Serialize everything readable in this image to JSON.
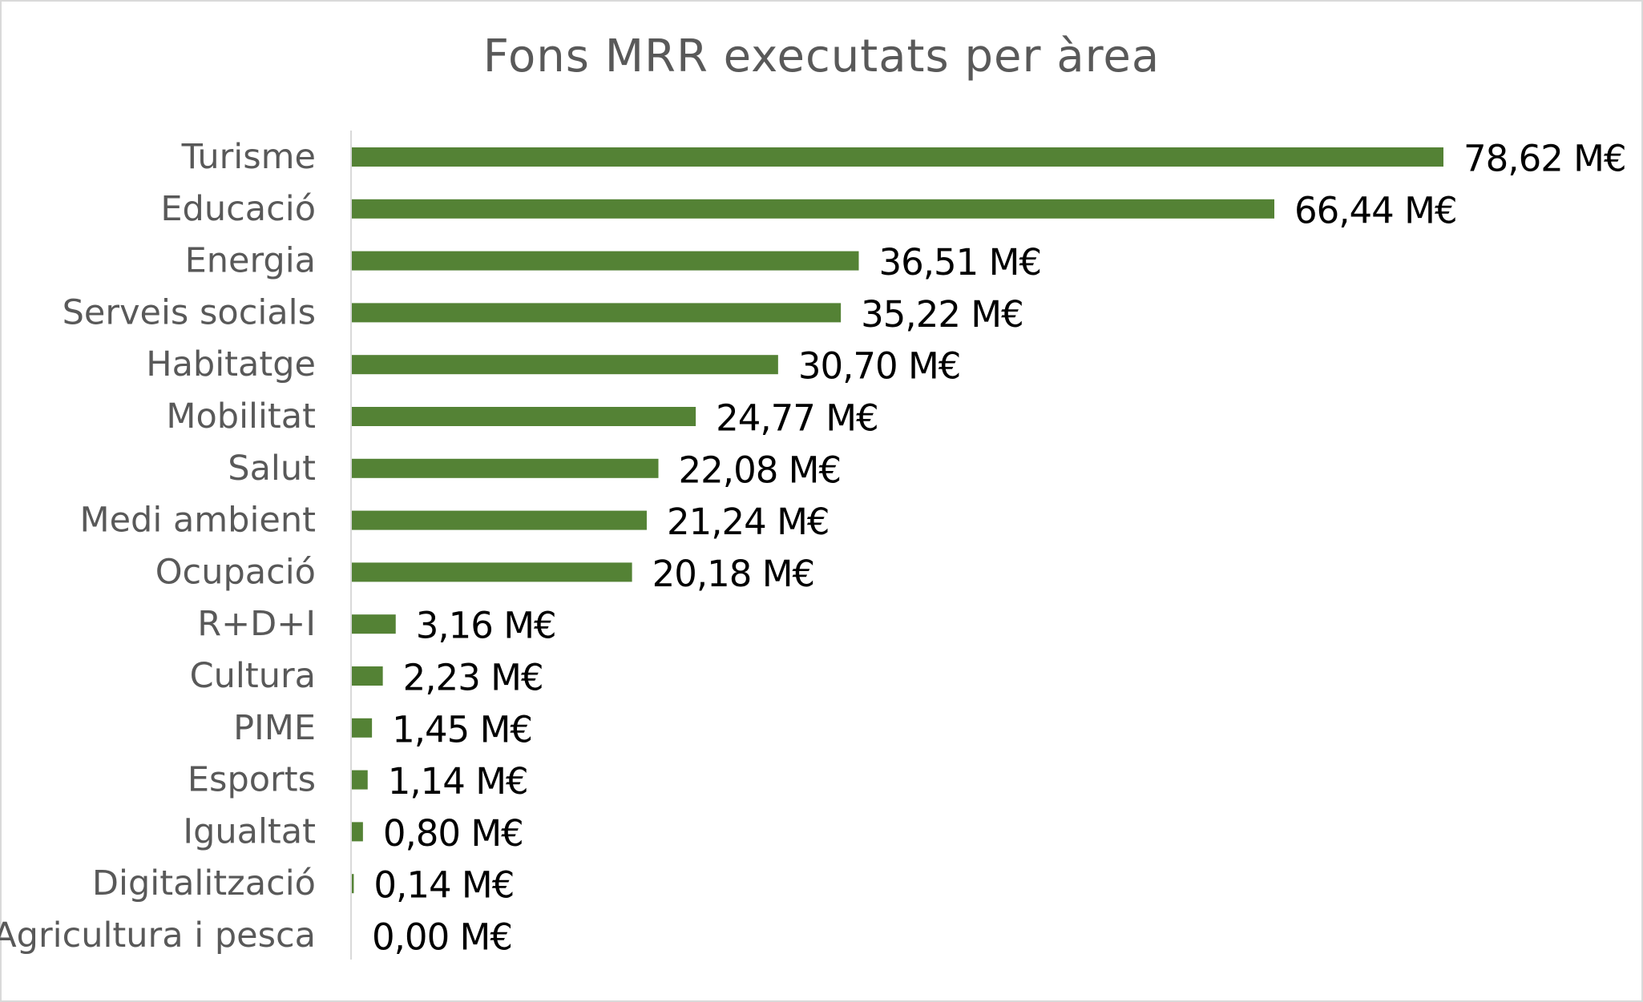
{
  "chart_data": {
    "type": "bar",
    "orientation": "horizontal",
    "title": "Fons MRR executats per àrea",
    "xlabel": "",
    "ylabel": "",
    "bar_color": "#548235",
    "axis_color": "#d9d9d9",
    "grid": false,
    "categories": [
      "Turisme",
      "Educació",
      "Energia",
      "Serveis socials",
      "Habitatge",
      "Mobilitat",
      "Salut",
      "Medi ambient",
      "Ocupació",
      "R+D+I",
      "Cultura",
      "PIME",
      "Esports",
      "Igualtat",
      "Digitalització",
      "Agricultura i pesca"
    ],
    "values": [
      78.62,
      66.44,
      36.51,
      35.22,
      30.7,
      24.77,
      22.08,
      21.24,
      20.18,
      3.16,
      2.23,
      1.45,
      1.14,
      0.8,
      0.14,
      0.0
    ],
    "data_labels": [
      "78,62 M€",
      "66,44 M€",
      "36,51 M€",
      "35,22 M€",
      "30,70 M€",
      "24,77 M€",
      "22,08 M€",
      "21,24 M€",
      "20,18 M€",
      "3,16 M€",
      "2,23 M€",
      "1,45 M€",
      "1,14 M€",
      "0,80 M€",
      "0,14 M€",
      "0,00 M€"
    ],
    "unit": "M€"
  }
}
